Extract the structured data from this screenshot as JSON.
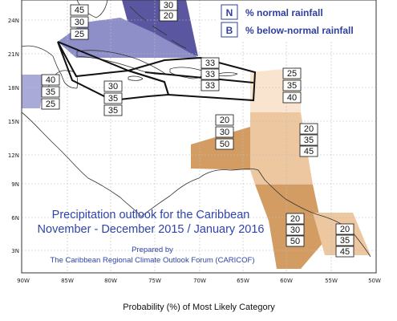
{
  "map": {
    "axes": {
      "lat_labels": [
        "24N",
        "21N",
        "18N",
        "15N",
        "12N",
        "9N",
        "6N",
        "3N"
      ],
      "lon_labels": [
        "90W",
        "85W",
        "80W",
        "75W",
        "70W",
        "65W",
        "60W",
        "55W",
        "50W"
      ]
    },
    "legend": [
      {
        "key": "N",
        "label": "% normal rainfall"
      },
      {
        "key": "B",
        "label": "% below-normal rainfall"
      }
    ],
    "regions": [
      {
        "id": "bahamas-northeast",
        "color": "#5a57a0",
        "probs": [
          "30",
          "20"
        ]
      },
      {
        "id": "bahamas-west",
        "color": "#8e8ec8",
        "probs": [
          "45",
          "30",
          "25"
        ]
      },
      {
        "id": "western-caribbean",
        "color": "#a9aad8",
        "probs": [
          "40",
          "35",
          "25"
        ]
      },
      {
        "id": "greater-antilles-west",
        "color": "#ffffff",
        "probs": [
          "30",
          "35",
          "35"
        ]
      },
      {
        "id": "greater-antilles-east",
        "color": "#ffffff",
        "probs": [
          "33",
          "33",
          "33"
        ]
      },
      {
        "id": "leeward-islands",
        "color": "#f9e4cf",
        "probs": [
          "25",
          "35",
          "40"
        ]
      },
      {
        "id": "southern-caribbean",
        "color": "#d39c62",
        "probs": [
          "20",
          "30",
          "50"
        ]
      },
      {
        "id": "windward-islands",
        "color": "#edc7a0",
        "probs": [
          "20",
          "35",
          "45"
        ]
      },
      {
        "id": "guyana",
        "color": "#d39c62",
        "probs": [
          "20",
          "30",
          "50"
        ]
      },
      {
        "id": "french-guiana",
        "color": "#edc7a0",
        "probs": [
          "20",
          "35",
          "45"
        ]
      }
    ],
    "title_line1": "Precipitation outlook for the Caribbean",
    "title_line2": "November - December 2015 / January 2016",
    "prepared_by": "Prepared by",
    "prepared_org": "The Caribbean Regional Climate Outlook Forum (CARICOF)",
    "footer": "Probability (%) of Most Likely Category"
  }
}
